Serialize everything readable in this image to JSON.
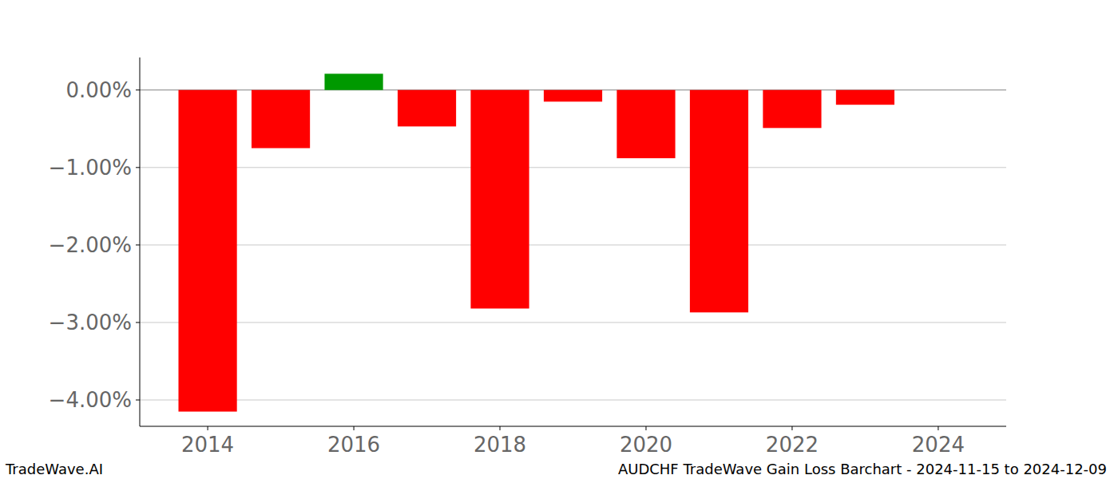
{
  "chart_data": {
    "type": "bar",
    "title": "AUDCHF TradeWave Gain Loss Barchart - 2024-11-15 to 2024-12-09",
    "annotations": [
      "TradeWave.AI"
    ],
    "x": [
      2014,
      2015,
      2016,
      2017,
      2018,
      2019,
      2020,
      2021,
      2022,
      2023
    ],
    "values": [
      -4.15,
      -0.75,
      0.21,
      -0.47,
      -2.82,
      -0.15,
      -0.88,
      -2.87,
      -0.49,
      -0.19
    ],
    "colors": [
      "#ff0000",
      "#ff0000",
      "#009900",
      "#ff0000",
      "#ff0000",
      "#ff0000",
      "#ff0000",
      "#ff0000",
      "#ff0000",
      "#ff0000"
    ],
    "xlim": [
      2013.07,
      2024.93
    ],
    "xticks": [
      2014,
      2016,
      2018,
      2020,
      2022,
      2024
    ],
    "ylim": [
      -4.34,
      0.42
    ],
    "yticks": [
      {
        "value": 0,
        "label": "0.00%"
      },
      {
        "value": -1,
        "label": "−1.00%"
      },
      {
        "value": -2,
        "label": "−2.00%"
      },
      {
        "value": -3,
        "label": "−3.00%"
      },
      {
        "value": -4,
        "label": "−4.00%"
      }
    ],
    "grid": true
  }
}
